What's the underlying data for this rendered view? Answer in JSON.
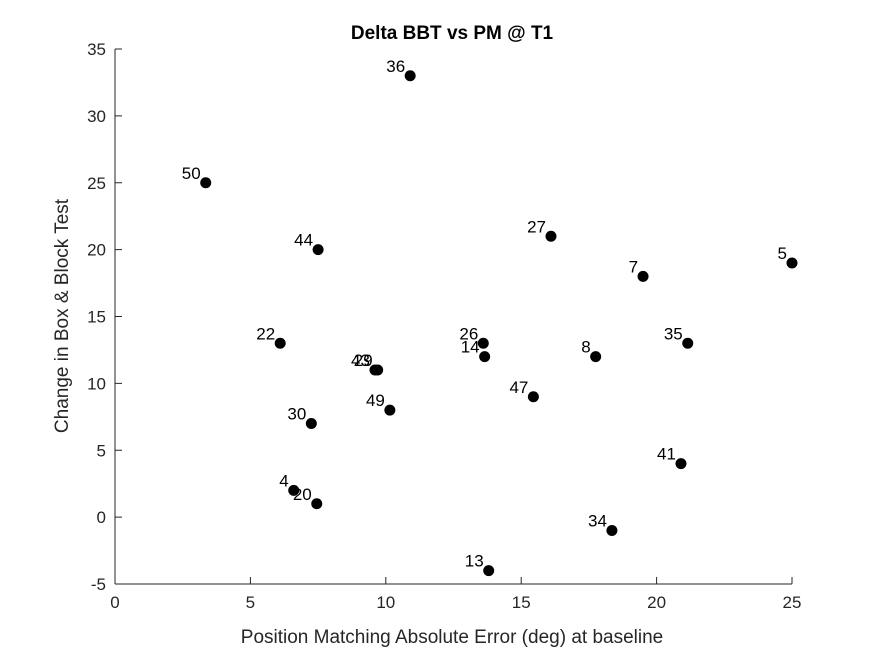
{
  "chart_data": {
    "type": "scatter",
    "title": "Delta BBT vs PM @ T1",
    "xlabel": "Position Matching Absolute Error (deg) at baseline",
    "ylabel": "Change in Box & Block Test",
    "xlim": [
      0,
      25
    ],
    "ylim": [
      -5,
      35
    ],
    "xticks": [
      0,
      5,
      10,
      15,
      20,
      25
    ],
    "yticks": [
      -5,
      0,
      5,
      10,
      15,
      20,
      25,
      30,
      35
    ],
    "xtick_labels": [
      "0",
      "5",
      "10",
      "15",
      "20",
      "25"
    ],
    "ytick_labels": [
      "-5",
      "0",
      "5",
      "10",
      "15",
      "20",
      "25",
      "30",
      "35"
    ],
    "grid": false,
    "marker_color": "#000000",
    "points": [
      {
        "label": "36",
        "x": 10.9,
        "y": 33
      },
      {
        "label": "50",
        "x": 3.35,
        "y": 25
      },
      {
        "label": "44",
        "x": 7.5,
        "y": 20
      },
      {
        "label": "27",
        "x": 16.1,
        "y": 21
      },
      {
        "label": "7",
        "x": 19.5,
        "y": 18
      },
      {
        "label": "5",
        "x": 25.0,
        "y": 19
      },
      {
        "label": "22",
        "x": 6.1,
        "y": 13
      },
      {
        "label": "26",
        "x": 13.6,
        "y": 13
      },
      {
        "label": "14",
        "x": 13.65,
        "y": 12
      },
      {
        "label": "8",
        "x": 17.75,
        "y": 12
      },
      {
        "label": "35",
        "x": 21.15,
        "y": 13
      },
      {
        "label": "43",
        "x": 9.6,
        "y": 11
      },
      {
        "label": "29",
        "x": 9.7,
        "y": 11
      },
      {
        "label": "47",
        "x": 15.45,
        "y": 9
      },
      {
        "label": "49",
        "x": 10.15,
        "y": 8
      },
      {
        "label": "30",
        "x": 7.25,
        "y": 7
      },
      {
        "label": "41",
        "x": 20.9,
        "y": 4
      },
      {
        "label": "4",
        "x": 6.6,
        "y": 2
      },
      {
        "label": "20",
        "x": 7.45,
        "y": 1
      },
      {
        "label": "34",
        "x": 18.35,
        "y": -1
      },
      {
        "label": "13",
        "x": 13.8,
        "y": -4
      }
    ]
  }
}
